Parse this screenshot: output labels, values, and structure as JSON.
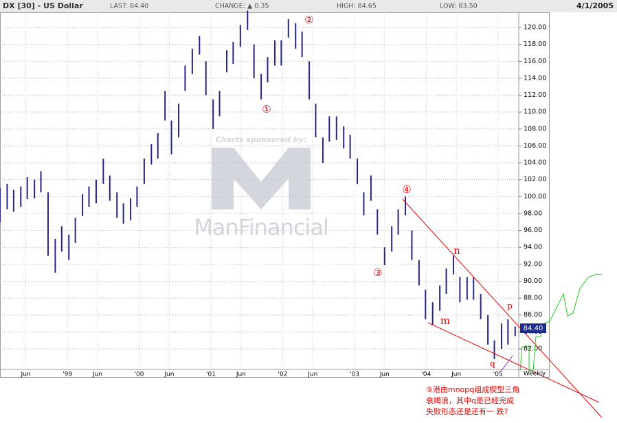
{
  "header": {
    "symbol": "DX [30] - US Dollar",
    "last": "LAST: 84.40",
    "change": "CHANGE: ▲ 0.35",
    "high": "HIGH: 84.65",
    "low": "LOW: 83.50",
    "date": "4/1/2005"
  },
  "watermark": {
    "sponsor": "Charts sponsored by:",
    "brand": "ManFinancial"
  },
  "annotations": {
    "p1": "①",
    "p2": "②",
    "p3": "③",
    "p4": "④",
    "m": "m",
    "n": "n",
    "p": "p",
    "q": "q",
    "note": [
      "⑤港由mnopq组成楔型三角",
      "衰竭浪，其中q是已经完成",
      "失败形态还是还有一 跌?"
    ]
  },
  "chart_data": {
    "type": "range-bar",
    "color": "#24248c",
    "grid": true,
    "period": "Weekly",
    "last_label": "84.40",
    "x": [
      1998.06,
      1998.16,
      1998.25,
      1998.35,
      1998.44,
      1998.54,
      1998.63,
      1998.73,
      1998.83,
      1998.92,
      1999.02,
      1999.11,
      1999.21,
      1999.3,
      1999.4,
      1999.5,
      1999.59,
      1999.69,
      1999.78,
      1999.88,
      1999.97,
      2000.07,
      2000.17,
      2000.26,
      2000.36,
      2000.45,
      2000.55,
      2000.64,
      2000.74,
      2000.84,
      2000.93,
      2001.03,
      2001.12,
      2001.22,
      2001.31,
      2001.41,
      2001.51,
      2001.6,
      2001.7,
      2001.79,
      2001.89,
      2001.98,
      2002.08,
      2002.18,
      2002.27,
      2002.37,
      2002.46,
      2002.56,
      2002.65,
      2002.75,
      2002.85,
      2002.94,
      2003.04,
      2003.13,
      2003.23,
      2003.32,
      2003.42,
      2003.52,
      2003.61,
      2003.71,
      2003.8,
      2003.9,
      2003.99,
      2004.09,
      2004.19,
      2004.28,
      2004.38,
      2004.47,
      2004.57,
      2004.66,
      2004.76,
      2004.86,
      2004.95,
      2005.05,
      2005.14,
      2005.24
    ],
    "high": [
      101,
      101.5,
      100.8,
      101.2,
      102.3,
      102,
      103,
      100.5,
      95,
      96.5,
      95.5,
      97.5,
      100.3,
      101.2,
      102,
      104.5,
      102.5,
      100.5,
      99.2,
      99.8,
      101.2,
      104.5,
      106.2,
      107.5,
      112.5,
      109,
      111,
      115.5,
      117.5,
      119,
      116,
      111.5,
      112.5,
      117.3,
      118.3,
      120.3,
      122,
      118,
      114.5,
      116.5,
      118.5,
      118.5,
      121,
      120.5,
      119.5,
      116,
      111,
      107,
      109.5,
      109.5,
      108.3,
      107.3,
      104.5,
      100.5,
      102.5,
      98.5,
      94,
      96.5,
      98.5,
      100,
      96,
      92.5,
      89,
      87.5,
      89.5,
      91.5,
      93,
      90.5,
      90.5,
      90.5,
      88.5,
      86,
      83,
      85,
      85.5,
      84.65
    ],
    "low": [
      97,
      98.5,
      98.2,
      98.8,
      99.7,
      99.8,
      100.5,
      93,
      91,
      93.5,
      92.5,
      94.5,
      97.7,
      98.8,
      99.2,
      101.5,
      99.5,
      97.5,
      96.8,
      97.2,
      98.8,
      101.5,
      103.8,
      104.5,
      109,
      105,
      107,
      112.5,
      114.5,
      116.8,
      112,
      108,
      109.5,
      114.7,
      115.7,
      117.7,
      119.7,
      114,
      111.5,
      113.5,
      115.5,
      115.5,
      118.8,
      117.5,
      116.5,
      111.5,
      107,
      104,
      106.5,
      106.7,
      105.7,
      104.5,
      101.5,
      97.8,
      99.5,
      95.5,
      91.9,
      93.5,
      95.5,
      97.8,
      92.5,
      89.5,
      85.5,
      84.8,
      86.5,
      88.5,
      90.8,
      87.5,
      87.8,
      87.8,
      85.5,
      82.5,
      80.8,
      82,
      82.5,
      83.5
    ],
    "xlim": [
      1998.06,
      2005.29
    ],
    "ylim": [
      79.4,
      122.6
    ],
    "xticks": [
      {
        "value": 1998.42,
        "label": "Jun"
      },
      {
        "value": 1999,
        "label": "'99"
      },
      {
        "value": 1999.42,
        "label": "Jun"
      },
      {
        "value": 2000,
        "label": "'00"
      },
      {
        "value": 2000.42,
        "label": "Jun"
      },
      {
        "value": 2001,
        "label": "'01"
      },
      {
        "value": 2001.42,
        "label": "Jun"
      },
      {
        "value": 2002,
        "label": "'02"
      },
      {
        "value": 2002.42,
        "label": "Jun"
      },
      {
        "value": 2003,
        "label": "'03"
      },
      {
        "value": 2003.42,
        "label": "Jun"
      },
      {
        "value": 2004,
        "label": "'04"
      },
      {
        "value": 2004.42,
        "label": "Jun"
      },
      {
        "value": 2005,
        "label": "'05"
      }
    ],
    "yticks": [
      {
        "value": 82,
        "label": "82.00"
      },
      {
        "value": 84,
        "label": "84.00"
      },
      {
        "value": 86,
        "label": "86.00"
      },
      {
        "value": 88,
        "label": "88.00"
      },
      {
        "value": 90,
        "label": "90.00"
      },
      {
        "value": 92,
        "label": "92.00"
      },
      {
        "value": 94,
        "label": "94.00"
      },
      {
        "value": 96,
        "label": "96.00"
      },
      {
        "value": 98,
        "label": "98.00"
      },
      {
        "value": 100,
        "label": "100.00"
      },
      {
        "value": 102,
        "label": "102.00"
      },
      {
        "value": 104,
        "label": "104.00"
      },
      {
        "value": 106,
        "label": "106.00"
      },
      {
        "value": 108,
        "label": "108.00"
      },
      {
        "value": 110,
        "label": "110.00"
      },
      {
        "value": 112,
        "label": "112.00"
      },
      {
        "value": 114,
        "label": "114.00"
      },
      {
        "value": 116,
        "label": "116.00"
      },
      {
        "value": 118,
        "label": "118.00"
      },
      {
        "value": 120,
        "label": "120.00"
      }
    ]
  }
}
